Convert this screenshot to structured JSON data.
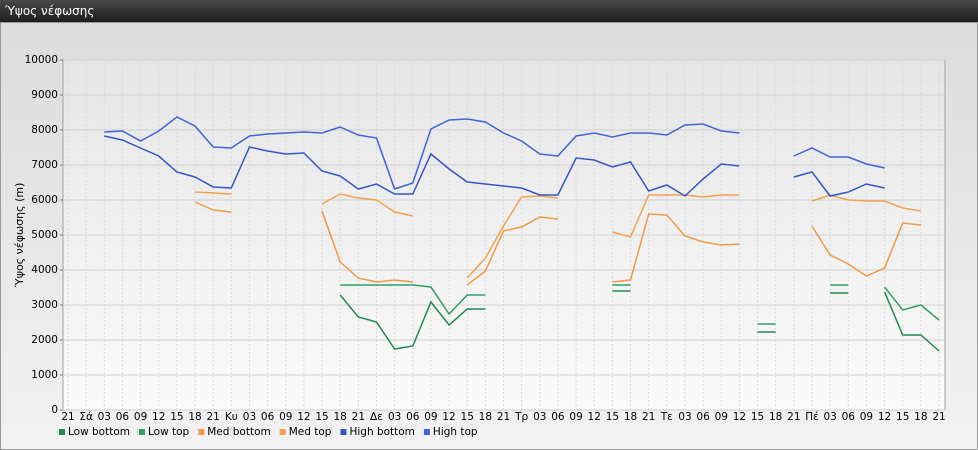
{
  "window_title": "Ύψος νέφωσης",
  "chart_data": {
    "type": "line",
    "y_label": "Ύψος νέφωσης (m)",
    "categories": [
      "21",
      "Σά",
      "03",
      "06",
      "09",
      "12",
      "15",
      "18",
      "21",
      "Κυ",
      "03",
      "06",
      "09",
      "12",
      "15",
      "18",
      "21",
      "Δε",
      "03",
      "06",
      "09",
      "12",
      "15",
      "18",
      "21",
      "Τρ",
      "03",
      "06",
      "09",
      "12",
      "15",
      "18",
      "21",
      "Τε",
      "03",
      "06",
      "09",
      "12",
      "15",
      "18",
      "21",
      "Πέ",
      "03",
      "06",
      "09",
      "12",
      "15",
      "18",
      "21"
    ],
    "ylim": [
      0,
      10000
    ],
    "yticks": [
      0,
      1000,
      2000,
      3000,
      4000,
      5000,
      6000,
      7000,
      8000,
      9000,
      10000
    ],
    "grid": true,
    "legend": "bottom-left",
    "series": [
      {
        "name": "Low bottom",
        "color": "#1f8a52",
        "values": [
          null,
          null,
          null,
          null,
          null,
          null,
          null,
          null,
          null,
          null,
          null,
          null,
          null,
          null,
          null,
          3286,
          2657,
          2514,
          1743,
          1829,
          3086,
          2429,
          2886,
          2886,
          null,
          null,
          null,
          null,
          null,
          null,
          3400,
          3400,
          null,
          null,
          null,
          null,
          null,
          null,
          2229,
          2229,
          null,
          null,
          3343,
          3343,
          null,
          3371,
          2143,
          2143,
          1686
        ]
      },
      {
        "name": "Low top",
        "color": "#2fa06a",
        "values": [
          null,
          null,
          null,
          null,
          null,
          null,
          null,
          null,
          null,
          null,
          null,
          null,
          null,
          null,
          null,
          3571,
          3571,
          3571,
          3571,
          3571,
          3514,
          2743,
          3286,
          3286,
          null,
          null,
          null,
          null,
          null,
          null,
          3571,
          3571,
          null,
          null,
          null,
          null,
          null,
          null,
          2457,
          2457,
          null,
          null,
          3571,
          3571,
          null,
          3514,
          2857,
          3000,
          2571
        ]
      },
      {
        "name": "Med bottom",
        "color": "#ef9a45",
        "values": [
          null,
          null,
          null,
          null,
          null,
          null,
          null,
          5943,
          5714,
          5657,
          null,
          null,
          null,
          null,
          5686,
          4229,
          3771,
          3657,
          3714,
          3657,
          null,
          null,
          3571,
          3971,
          5114,
          5229,
          5514,
          5457,
          null,
          null,
          3657,
          3714,
          5600,
          5571,
          4971,
          4800,
          4714,
          4743,
          null,
          null,
          null,
          5257,
          4429,
          4171,
          3829,
          4057,
          5343,
          5286,
          null
        ]
      },
      {
        "name": "Med top",
        "color": "#f0a450",
        "values": [
          null,
          null,
          null,
          null,
          null,
          null,
          null,
          6229,
          6200,
          6171,
          null,
          null,
          null,
          null,
          5886,
          6171,
          6057,
          6000,
          5657,
          5543,
          null,
          null,
          3771,
          4343,
          5257,
          6086,
          6114,
          6057,
          null,
          null,
          5086,
          4943,
          6143,
          6143,
          6143,
          6086,
          6143,
          6143,
          null,
          null,
          null,
          5971,
          6143,
          6000,
          5971,
          5971,
          5771,
          5686,
          null
        ]
      },
      {
        "name": "High bottom",
        "color": "#3555c8",
        "values": [
          null,
          null,
          7829,
          7714,
          7486,
          7257,
          6800,
          6657,
          6371,
          6343,
          7514,
          7400,
          7314,
          7343,
          6829,
          6686,
          6314,
          6457,
          6171,
          6171,
          7314,
          6886,
          6514,
          6457,
          6400,
          6343,
          6143,
          6143,
          7200,
          7143,
          6943,
          7086,
          6257,
          6429,
          6114,
          6600,
          7029,
          6971,
          null,
          null,
          6657,
          6800,
          6114,
          6229,
          6457,
          6343,
          null,
          null,
          null
        ]
      },
      {
        "name": "High top",
        "color": "#3f64d6",
        "values": [
          null,
          null,
          7943,
          7971,
          7686,
          7971,
          8371,
          8114,
          7514,
          7486,
          7829,
          7886,
          7914,
          7943,
          7914,
          8086,
          7857,
          7771,
          6314,
          6486,
          8029,
          8286,
          8314,
          8229,
          7914,
          7686,
          7314,
          7257,
          7829,
          7914,
          7800,
          7914,
          7914,
          7857,
          8143,
          8171,
          7971,
          7914,
          null,
          null,
          7257,
          7486,
          7229,
          7229,
          7029,
          6914,
          null,
          null,
          null
        ]
      }
    ]
  }
}
